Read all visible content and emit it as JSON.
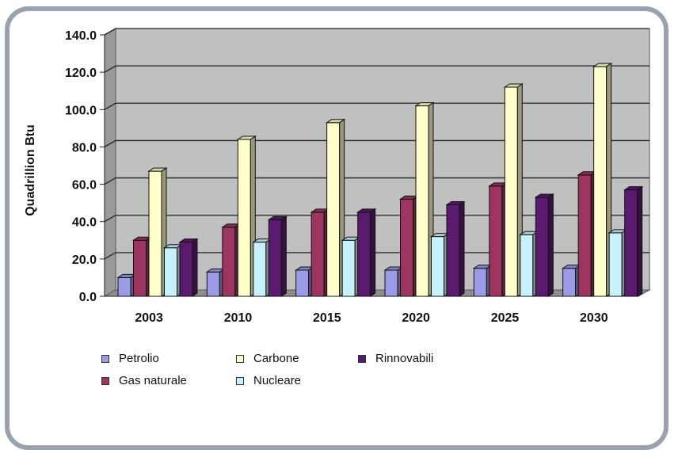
{
  "chart_data": {
    "type": "bar",
    "title": "",
    "xlabel": "",
    "ylabel": "Quadrillion Btu",
    "ylim": [
      0,
      140
    ],
    "yticks": [
      "0.0",
      "20.0",
      "40.0",
      "60.0",
      "80.0",
      "100.0",
      "120.0",
      "140.0"
    ],
    "categories": [
      "2003",
      "2010",
      "2015",
      "2020",
      "2025",
      "2030"
    ],
    "grid": true,
    "legend_position": "bottom",
    "series": [
      {
        "name": "Petrolio",
        "color": "#9b9be6",
        "values": [
          10,
          13,
          14,
          14,
          15,
          15
        ]
      },
      {
        "name": "Gas naturale",
        "color": "#9c3560",
        "values": [
          30,
          37,
          45,
          52,
          59,
          65
        ]
      },
      {
        "name": "Carbone",
        "color": "#ffffcc",
        "values": [
          67,
          84,
          93,
          102,
          112,
          123
        ]
      },
      {
        "name": "Nucleare",
        "color": "#c9f1fb",
        "values": [
          26,
          29,
          30,
          32,
          33,
          34
        ]
      },
      {
        "name": "Rinnovabili",
        "color": "#5a1a6e",
        "values": [
          29,
          41,
          45,
          49,
          53,
          57
        ]
      }
    ]
  }
}
